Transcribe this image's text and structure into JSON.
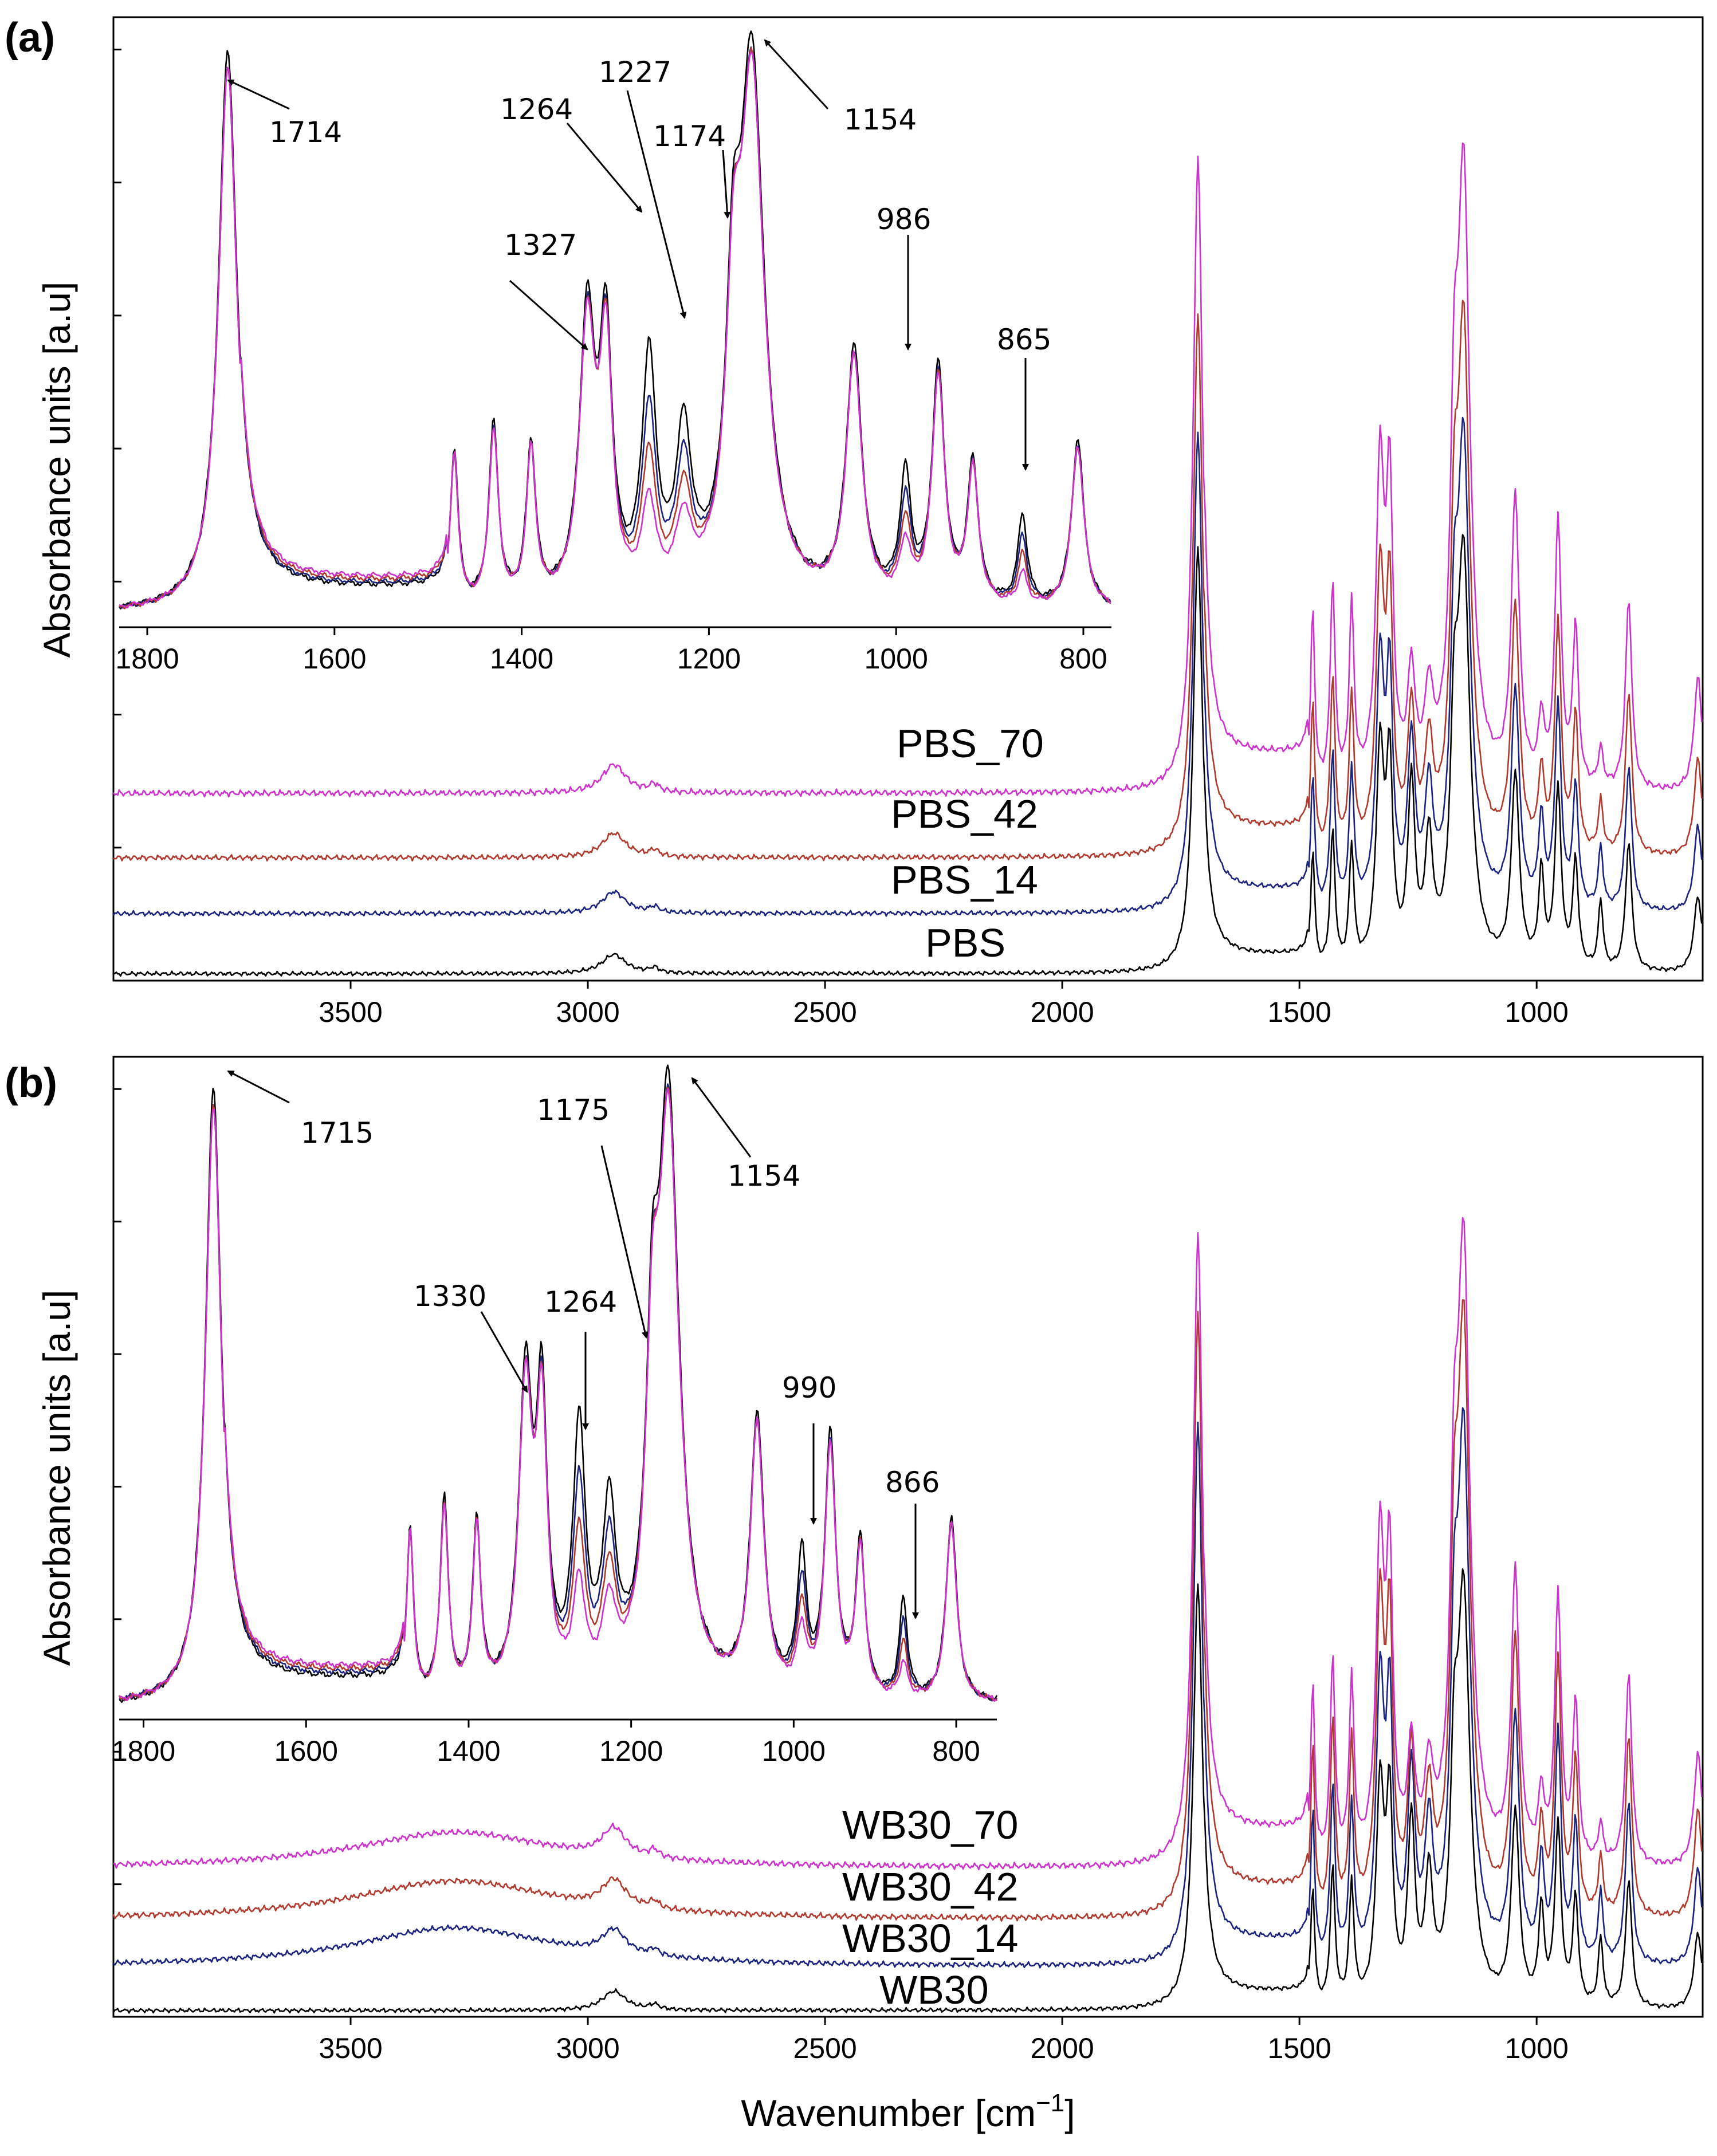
{
  "figure": {
    "xlabel_main": "Wavenumber [cm",
    "xlabel_sup": "−1",
    "xlabel_close": "]"
  },
  "chart_data": [
    {
      "panel": "(a)",
      "type": "line",
      "title": "",
      "xlabel": "Wavenumber [cm⁻¹]",
      "ylabel": "Absorbance units [a.u]",
      "xlim": [
        4000,
        650
      ],
      "x_reversed": true,
      "xticks": [
        3500,
        3000,
        2500,
        2000,
        1500,
        1000
      ],
      "legend": "labels placed on curves",
      "colors": {
        "base": "#000000",
        "14": "#1a237e",
        "42": "#b03a2e",
        "70": "#cc33cc"
      },
      "series": [
        {
          "name": "PBS",
          "color": "#000000",
          "offset": 0.0,
          "carbonyl": 0.95,
          "scale": 0.55
        },
        {
          "name": "PBS_14",
          "color": "#1a237e",
          "offset": 0.07,
          "carbonyl": 0.62,
          "scale": 0.62
        },
        {
          "name": "PBS_42",
          "color": "#b03a2e",
          "offset": 0.135,
          "carbonyl": 0.69,
          "scale": 0.7
        },
        {
          "name": "PBS_70",
          "color": "#cc33cc",
          "offset": 0.21,
          "carbonyl": 0.87,
          "scale": 0.82
        }
      ],
      "inset": {
        "xlim": [
          1830,
          770
        ],
        "xticks": [
          1800,
          1600,
          1400,
          1200,
          1000,
          800
        ],
        "annotations": [
          {
            "label": "1714",
            "x": 1714
          },
          {
            "label": "1327",
            "x": 1327
          },
          {
            "label": "1264",
            "x": 1264
          },
          {
            "label": "1227",
            "x": 1227
          },
          {
            "label": "1174",
            "x": 1174
          },
          {
            "label": "1154",
            "x": 1154
          },
          {
            "label": "986",
            "x": 986
          },
          {
            "label": "865",
            "x": 865
          }
        ]
      }
    },
    {
      "panel": "(b)",
      "type": "line",
      "title": "",
      "xlabel": "Wavenumber [cm⁻¹]",
      "ylabel": "Absorbance units [a.u]",
      "xlim": [
        4000,
        650
      ],
      "x_reversed": true,
      "xticks": [
        3500,
        3000,
        2500,
        2000,
        1500,
        1000
      ],
      "legend": "labels placed on curves",
      "colors": {
        "base": "#000000",
        "14": "#1a237e",
        "42": "#b03a2e",
        "70": "#cc33cc"
      },
      "series": [
        {
          "name": "WB30",
          "color": "#000000",
          "offset": 0.0,
          "carbonyl": 0.78,
          "scale": 0.55
        },
        {
          "name": "WB30_14",
          "color": "#1a237e",
          "offset": 0.05,
          "carbonyl": 0.81,
          "scale": 0.7
        },
        {
          "name": "WB30_42",
          "color": "#b03a2e",
          "offset": 0.105,
          "carbonyl": 0.83,
          "scale": 0.78
        },
        {
          "name": "WB30_70",
          "color": "#cc33cc",
          "offset": 0.165,
          "carbonyl": 0.85,
          "scale": 0.82
        }
      ],
      "inset": {
        "xlim": [
          1830,
          750
        ],
        "xticks": [
          1800,
          1600,
          1400,
          1200,
          1000,
          800
        ],
        "annotations": [
          {
            "label": "1715",
            "x": 1715
          },
          {
            "label": "1330",
            "x": 1330
          },
          {
            "label": "1264",
            "x": 1264
          },
          {
            "label": "1175",
            "x": 1175
          },
          {
            "label": "1154",
            "x": 1154
          },
          {
            "label": "990",
            "x": 990
          },
          {
            "label": "866",
            "x": 866
          }
        ]
      }
    }
  ]
}
